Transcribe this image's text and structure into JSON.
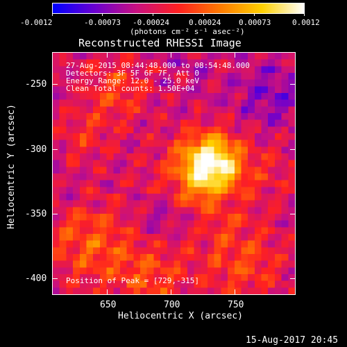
{
  "colorbar": {
    "tick_labels": [
      "-0.0012",
      "-0.00073",
      "-0.00024",
      "0.00024",
      "0.00073",
      "0.0012"
    ],
    "unit_label": "(photons cm⁻² s⁻¹ asec⁻²)",
    "gradient": [
      "#0000ff",
      "#6a00d0",
      "#c81080",
      "#ff2020",
      "#ff7a00",
      "#ffd000",
      "#ffffff"
    ]
  },
  "plot": {
    "title": "Reconstructed RHESSI Image",
    "info_lines": [
      "27-Aug-2015 08:44:48.000 to 08:54:48.000",
      "Detectors: 3F 5F 6F 7F, Att 0",
      "Energy Range: 12.0 - 25.0 keV",
      "Clean    Total counts: 1.50E+04"
    ],
    "peak_text": "Position of Peak = [729,-315]",
    "xlabel": "Heliocentric X (arcsec)",
    "ylabel": "Heliocentric Y (arcsec)",
    "x_tick_labels": [
      "650",
      "700",
      "750"
    ],
    "y_tick_labels": [
      "-250",
      "-300",
      "-350",
      "-400"
    ]
  },
  "footer": {
    "timestamp": "15-Aug-2017 20:45"
  }
}
